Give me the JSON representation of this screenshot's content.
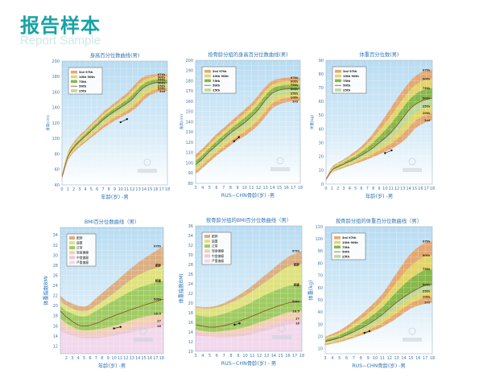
{
  "header": {
    "title": "报告样本",
    "subtitle": "Report Sample"
  },
  "colors": {
    "header": "#17a3a6",
    "title": "#2f74b5",
    "tick": "#3d78b0",
    "band_outer": "#e4a872",
    "band_mid": "#e3d56a",
    "band_inner_hi": "#86b84a",
    "band_inner_lo": "#bcd99a",
    "median_line": "#8b4a2a",
    "bmi_obese": "#dcae80",
    "bmi_over": "#dfe27e",
    "bmi_normal": "#9fcb62",
    "bmi_mild": "#f1d0b0",
    "bmi_moderate": "#eec8d2",
    "bmi_severe": "#f2d8ec",
    "patient": "#111111"
  },
  "percentile_legend": [
    "3rd   97th",
    "10th  90th",
    "75th",
    "50th",
    "25th"
  ],
  "bmi_legend": [
    "肥胖",
    "超重",
    "正常",
    "轻度偏瘦",
    "中度偏瘦",
    "严重偏瘦"
  ],
  "chart_data": [
    {
      "type": "area",
      "title": "身高百分位数曲线(男)",
      "xlabel": "年龄(岁) -男",
      "ylabel": "身高(cm)",
      "xlim": [
        0,
        18
      ],
      "ylim": [
        40,
        200
      ],
      "xticks": [
        0,
        1,
        2,
        3,
        4,
        5,
        6,
        7,
        8,
        9,
        10,
        11,
        12,
        13,
        14,
        15,
        16,
        17,
        18
      ],
      "yticks": [
        40,
        60,
        80,
        100,
        120,
        140,
        160,
        180,
        200
      ],
      "x": [
        0,
        1,
        2,
        3,
        4,
        5,
        6,
        7,
        8,
        9,
        10,
        11,
        12,
        13,
        14,
        15,
        16,
        17,
        18
      ],
      "p97": [
        54,
        82,
        95,
        104,
        111,
        119,
        126,
        134,
        140,
        146,
        152,
        158,
        166,
        174,
        180,
        182,
        183,
        183,
        183
      ],
      "p50": [
        50,
        76,
        88,
        96,
        103,
        110,
        117,
        124,
        130,
        135,
        140,
        145,
        151,
        159,
        166,
        170,
        172,
        172,
        172
      ],
      "p3": [
        47,
        71,
        82,
        89,
        95,
        101,
        107,
        113,
        118,
        123,
        127,
        131,
        136,
        142,
        150,
        156,
        159,
        161,
        161
      ],
      "right_labels": [
        "97th",
        "90th",
        "75th",
        "50th",
        "25th",
        "10th",
        "3rd"
      ],
      "patient": {
        "x": [
          10,
          11.1
        ],
        "y": [
          121,
          125
        ]
      }
    },
    {
      "type": "area",
      "title": "按骨龄分组的身高百分位数曲线(男)",
      "xlabel": "RUS−CHN骨龄(岁) -男",
      "ylabel": "身高(cm)",
      "xlim": [
        3,
        18
      ],
      "ylim": [
        80,
        200
      ],
      "xticks": [
        3,
        4,
        5,
        6,
        7,
        8,
        9,
        10,
        11,
        12,
        13,
        14,
        15,
        16,
        17,
        18
      ],
      "yticks": [
        80,
        90,
        100,
        110,
        120,
        130,
        140,
        150,
        160,
        170,
        180,
        190,
        200
      ],
      "x": [
        3,
        4,
        5,
        6,
        7,
        8,
        9,
        10,
        11,
        12,
        13,
        14,
        15,
        16,
        17,
        18
      ],
      "p97": [
        108,
        114,
        121,
        128,
        134,
        140,
        146,
        152,
        158,
        166,
        174,
        180,
        182,
        183,
        183,
        183
      ],
      "p50": [
        98,
        104,
        111,
        117,
        123,
        129,
        134,
        139,
        145,
        152,
        161,
        168,
        171,
        172,
        172,
        172
      ],
      "p3": [
        89,
        95,
        101,
        107,
        112,
        117,
        122,
        126,
        131,
        137,
        145,
        153,
        157,
        159,
        160,
        160
      ],
      "right_labels": [
        "97th",
        "90th",
        "75th",
        "50th",
        "25th",
        "10th",
        "3rd"
      ],
      "patient": {
        "x": [
          8.5,
          9.2
        ],
        "y": [
          121,
          125
        ]
      }
    },
    {
      "type": "area",
      "title": "体重百分位数(男)",
      "xlabel": "年龄(岁) -男",
      "ylabel": "体重(kg)",
      "xlim": [
        0,
        18
      ],
      "ylim": [
        0,
        90
      ],
      "xticks": [
        0,
        1,
        2,
        3,
        4,
        5,
        6,
        7,
        8,
        9,
        10,
        11,
        12,
        13,
        14,
        15,
        16,
        17,
        18
      ],
      "yticks": [
        0,
        10,
        20,
        30,
        40,
        50,
        60,
        70,
        80,
        90
      ],
      "x": [
        0,
        1,
        2,
        3,
        4,
        5,
        6,
        7,
        8,
        9,
        10,
        11,
        12,
        13,
        14,
        15,
        16,
        17,
        18
      ],
      "p97": [
        4.2,
        12.5,
        15.5,
        18,
        21,
        24,
        27.5,
        32,
        37,
        43,
        49,
        55.5,
        62,
        68,
        73.5,
        78,
        81,
        82.5,
        83
      ],
      "p50": [
        3.3,
        10,
        12.5,
        14.5,
        16.5,
        18.5,
        21,
        23.5,
        26.5,
        30,
        33.5,
        37.5,
        42.5,
        48,
        53.5,
        57.5,
        60,
        61.5,
        62.5
      ],
      "p3": [
        2.7,
        8.3,
        10.2,
        11.8,
        13.3,
        14.8,
        16.3,
        18,
        19.7,
        21.5,
        23.5,
        25.5,
        28,
        31,
        35,
        40,
        43,
        45,
        46.5
      ],
      "right_labels": [
        "97th",
        "90th",
        "75th",
        "50th",
        "25th",
        "10th",
        "3rd"
      ],
      "patient": {
        "x": [
          10,
          11.1
        ],
        "y": [
          22.5,
          24.5
        ]
      }
    },
    {
      "type": "area",
      "title": "BMI百分位数曲线（男）",
      "xlabel": "年龄(岁) -男",
      "ylabel": "体重指数BMI",
      "xlim": [
        1,
        18.3
      ],
      "ylim": [
        10.5,
        35.5
      ],
      "xticks": [
        2,
        3,
        4,
        5,
        6,
        7,
        8,
        9,
        10,
        11,
        12,
        13,
        14,
        15,
        16,
        17,
        18
      ],
      "yticks": [
        12,
        14,
        16,
        18,
        20,
        22,
        24,
        26,
        28,
        30,
        32,
        34
      ],
      "x": [
        1,
        2,
        4,
        5.5,
        7,
        10,
        14,
        18.3
      ],
      "top": [
        22,
        21,
        20,
        20,
        21.5,
        24.5,
        28.5,
        31.8
      ],
      "obese": [
        21,
        20,
        19,
        19,
        20,
        22.5,
        26,
        28
      ],
      "overweight": [
        20,
        19,
        18,
        18,
        19,
        21,
        23.5,
        25
      ],
      "p50": [
        19,
        17.8,
        16.2,
        16,
        16.5,
        18,
        19.7,
        21.3
      ],
      "t18_5": [
        17.5,
        16.5,
        15.3,
        15.1,
        15.3,
        16,
        17.5,
        18.5
      ],
      "t17": [
        16,
        15.3,
        14.5,
        14.3,
        14.3,
        14.8,
        16,
        17
      ],
      "t16": [
        15,
        14.4,
        13.7,
        13.5,
        13.5,
        14,
        15,
        16
      ],
      "bottom": 10.5,
      "right_labels": [
        "97th",
        "肥胖",
        "超重",
        "50th",
        "18.5",
        "17",
        "16"
      ],
      "patient": {
        "x": [
          10,
          11.1
        ],
        "y": [
          15.5,
          15.8
        ]
      }
    },
    {
      "type": "area",
      "title": "按骨龄分组的BMI百分位数曲线（男）",
      "xlabel": "RUS−CHN骨龄(岁) - 男",
      "ylabel": "体重指数BMI",
      "xlim": [
        3,
        18
      ],
      "ylim": [
        10,
        36
      ],
      "xticks": [
        3,
        4,
        5,
        6,
        7,
        8,
        9,
        10,
        11,
        12,
        13,
        14,
        15,
        16,
        17,
        18
      ],
      "yticks": [
        10,
        12,
        14,
        16,
        18,
        20,
        22,
        24,
        26,
        28,
        30,
        32,
        34,
        36
      ],
      "x": [
        3,
        5,
        7,
        10,
        13,
        16,
        18
      ],
      "top": [
        19.3,
        19.2,
        20,
        22.5,
        26,
        29.5,
        30.8
      ],
      "obese": [
        19,
        18.8,
        19.5,
        21.5,
        24.5,
        27.5,
        28
      ],
      "overweight": [
        17.5,
        17.2,
        17.8,
        19.5,
        21.8,
        23.5,
        23.8
      ],
      "p50": [
        15.5,
        15,
        15.3,
        16.7,
        18.5,
        20,
        20.3
      ],
      "t18_5": [
        14.5,
        14,
        14.2,
        15,
        16.5,
        18,
        18.3
      ],
      "t17": [
        14,
        13.5,
        13.5,
        14,
        15.3,
        16.6,
        16.8
      ],
      "t16": [
        13.3,
        13,
        12.8,
        13.2,
        14.3,
        15.5,
        15.8
      ],
      "bottom": 10,
      "right_labels": [
        "97th",
        "肥胖",
        "超重",
        "50th",
        "18.5",
        "17",
        "16"
      ],
      "patient": {
        "x": [
          8.5,
          9.2
        ],
        "y": [
          15.5,
          15.8
        ]
      }
    },
    {
      "type": "area",
      "title": "按骨龄分组的体重百分位数曲线（男）",
      "xlabel": "RUS−CHN骨龄(岁) -男",
      "ylabel": "体重(kg)",
      "xlim": [
        3,
        18
      ],
      "ylim": [
        6,
        110
      ],
      "xticks": [
        3,
        4,
        5,
        6,
        7,
        8,
        9,
        10,
        11,
        12,
        13,
        14,
        15,
        16,
        17,
        18
      ],
      "yticks": [
        10,
        20,
        30,
        40,
        50,
        60,
        70,
        80,
        90,
        100,
        110
      ],
      "x": [
        3,
        5,
        7,
        9,
        11,
        13,
        15,
        17,
        18
      ],
      "p97": [
        20,
        25,
        33,
        43,
        55,
        72,
        88,
        97,
        98
      ],
      "p50": [
        16,
        19,
        24,
        30,
        38,
        48,
        56,
        62,
        62.5
      ],
      "p3": [
        13,
        15.5,
        19,
        23,
        28,
        35,
        43,
        47,
        48
      ],
      "right_labels": [
        "97th",
        "90th",
        "75th",
        "50th",
        "25th",
        "10th",
        "3rd"
      ],
      "patient": {
        "x": [
          8.5,
          9.2
        ],
        "y": [
          23,
          24.5
        ]
      }
    }
  ]
}
